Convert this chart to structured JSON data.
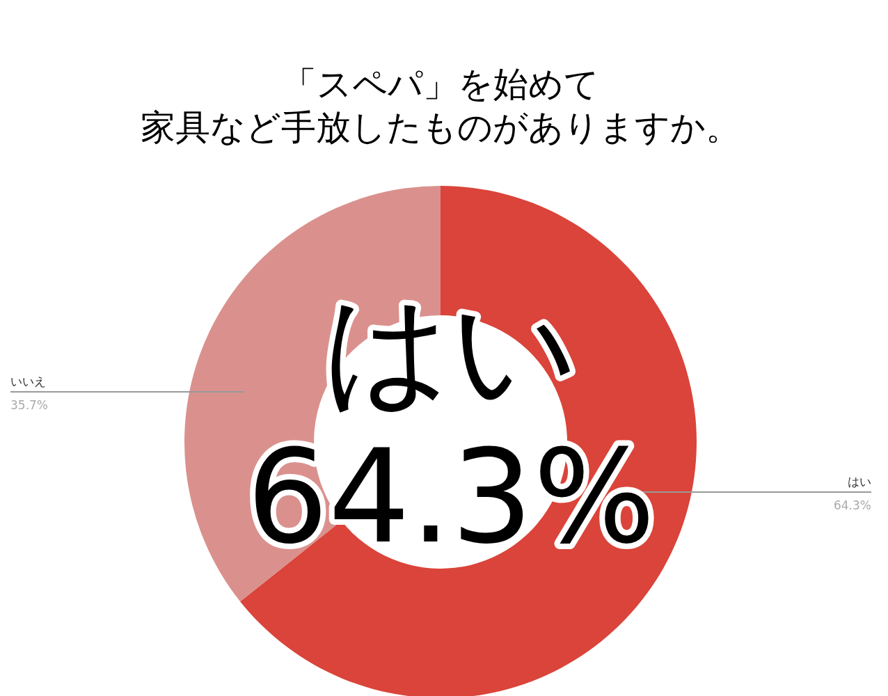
{
  "chart_data": {
    "type": "donut",
    "title": "「スペパ」を始めて",
    "subtitle": "家具など手放したものがありますか。",
    "categories": [
      "はい",
      "いいえ"
    ],
    "values": [
      64.3,
      35.7
    ],
    "colors": [
      "#da443a",
      "#da918d"
    ],
    "value_labels": [
      "64.3%",
      "35.7%"
    ],
    "annotations": [
      "はい",
      "64.3%"
    ]
  }
}
